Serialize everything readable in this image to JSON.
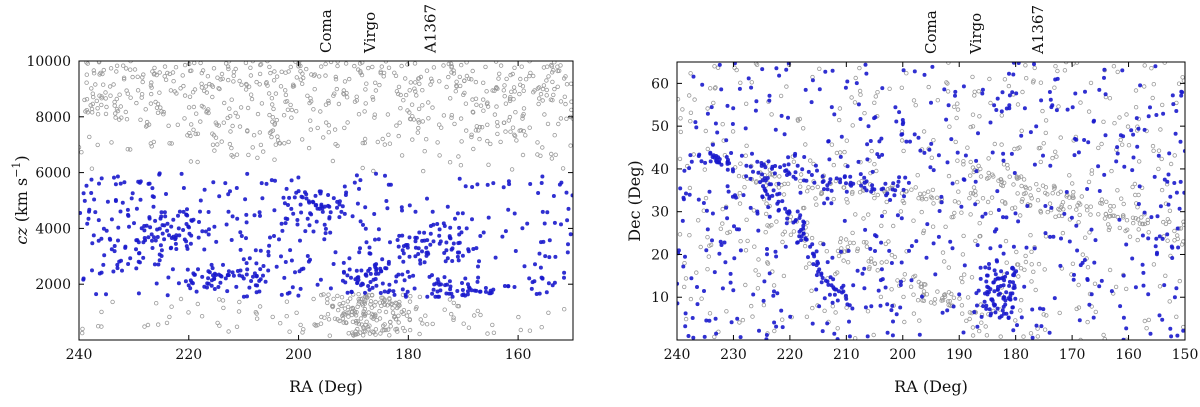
{
  "chart_data": [
    {
      "type": "scatter",
      "xlabel": "RA (Deg)",
      "ylabel": "cz (km s−1)",
      "ylabel_main": "cz",
      "ylabel_unit": " (km s",
      "ylabel_exp": "−1",
      "ylabel_close": ")",
      "xlim": [
        240,
        150
      ],
      "ylim": [
        0,
        10000
      ],
      "xticks": [
        240,
        220,
        200,
        180,
        160
      ],
      "yticks": [
        2000,
        4000,
        6000,
        8000,
        10000
      ],
      "grid": false,
      "annotations": [
        {
          "text": "Coma",
          "x": 195
        },
        {
          "text": "Virgo",
          "x": 187
        },
        {
          "text": "A1367",
          "x": 176
        }
      ],
      "series": [
        {
          "color": "#999999",
          "style": "open-circle",
          "approx_points": 900
        },
        {
          "color": "#1a1acc",
          "style": "filled-circle",
          "approx_points": 700,
          "y_range": [
            1500,
            6000
          ]
        }
      ]
    },
    {
      "type": "scatter",
      "xlabel": "RA (Deg)",
      "ylabel": "Dec (Deg)",
      "xlim": [
        240,
        150
      ],
      "ylim": [
        0,
        65
      ],
      "xticks": [
        240,
        230,
        220,
        210,
        200,
        190,
        180,
        170,
        160,
        150
      ],
      "yticks": [
        10,
        20,
        30,
        40,
        50,
        60
      ],
      "grid": false,
      "annotations": [
        {
          "text": "Coma",
          "x": 195
        },
        {
          "text": "Virgo",
          "x": 187
        },
        {
          "text": "A1367",
          "x": 176
        }
      ],
      "series": [
        {
          "color": "#999999",
          "style": "open-circle",
          "approx_points": 800
        },
        {
          "color": "#1a1acc",
          "style": "filled-circle",
          "approx_points": 800
        }
      ]
    }
  ]
}
